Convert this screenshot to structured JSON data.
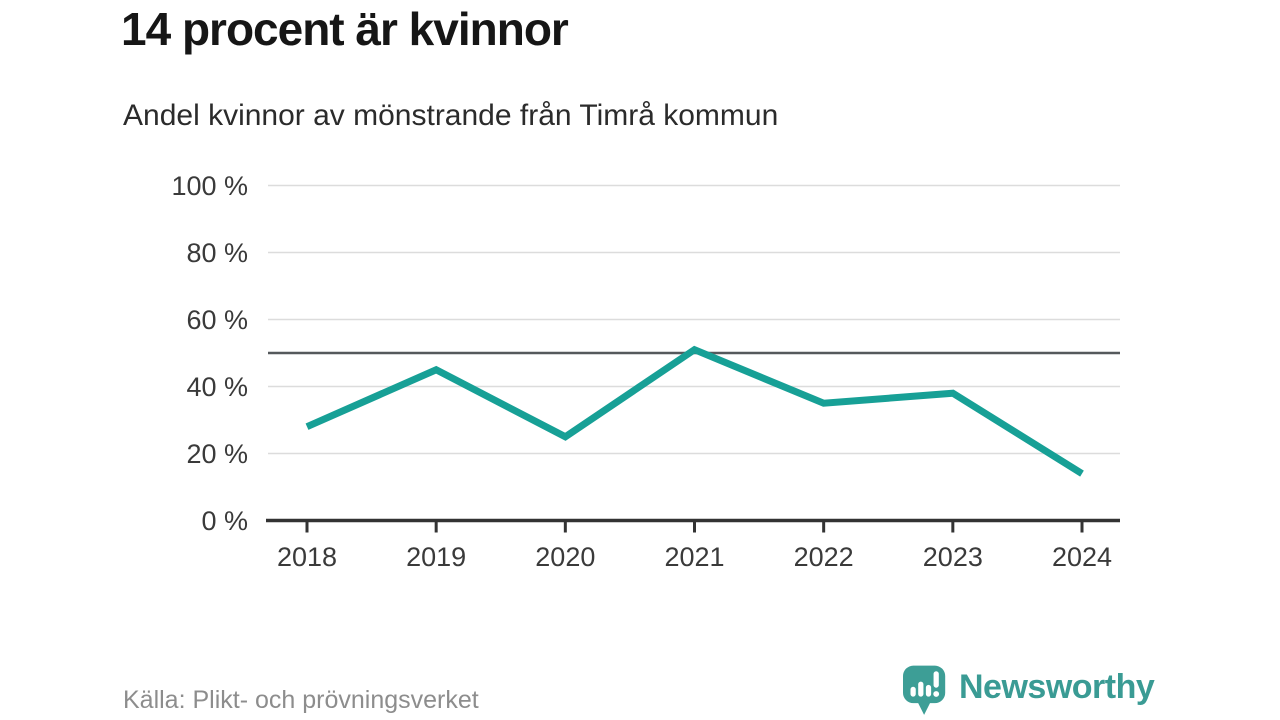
{
  "header": {
    "title": "14 procent är kvinnor",
    "subtitle": "Andel kvinnor av mönstrande från Timrå kommun"
  },
  "footer": {
    "source": "Källa: Plikt- och prövningsverket",
    "brand": "Newsworthy"
  },
  "colors": {
    "line": "#17a096",
    "reference": "#55595c",
    "grid": "#dcdcdc",
    "axis": "#333333",
    "tick_label": "#3a3a3a",
    "brand": "#3d9e96"
  },
  "chart_data": {
    "type": "line",
    "title": "14 procent är kvinnor",
    "subtitle": "Andel kvinnor av mönstrande från Timrå kommun",
    "categories": [
      "2018",
      "2019",
      "2020",
      "2021",
      "2022",
      "2023",
      "2024"
    ],
    "values": [
      28,
      45,
      25,
      51,
      35,
      38,
      14
    ],
    "unit": "%",
    "xlabel": "",
    "ylabel": "",
    "ylim": [
      0,
      100
    ],
    "yticks": [
      0,
      20,
      40,
      60,
      80,
      100
    ],
    "ytick_format": "{v} %",
    "reference_line": 50,
    "grid": true,
    "legend": "none",
    "source": "Källa: Plikt- och prövningsverket"
  }
}
